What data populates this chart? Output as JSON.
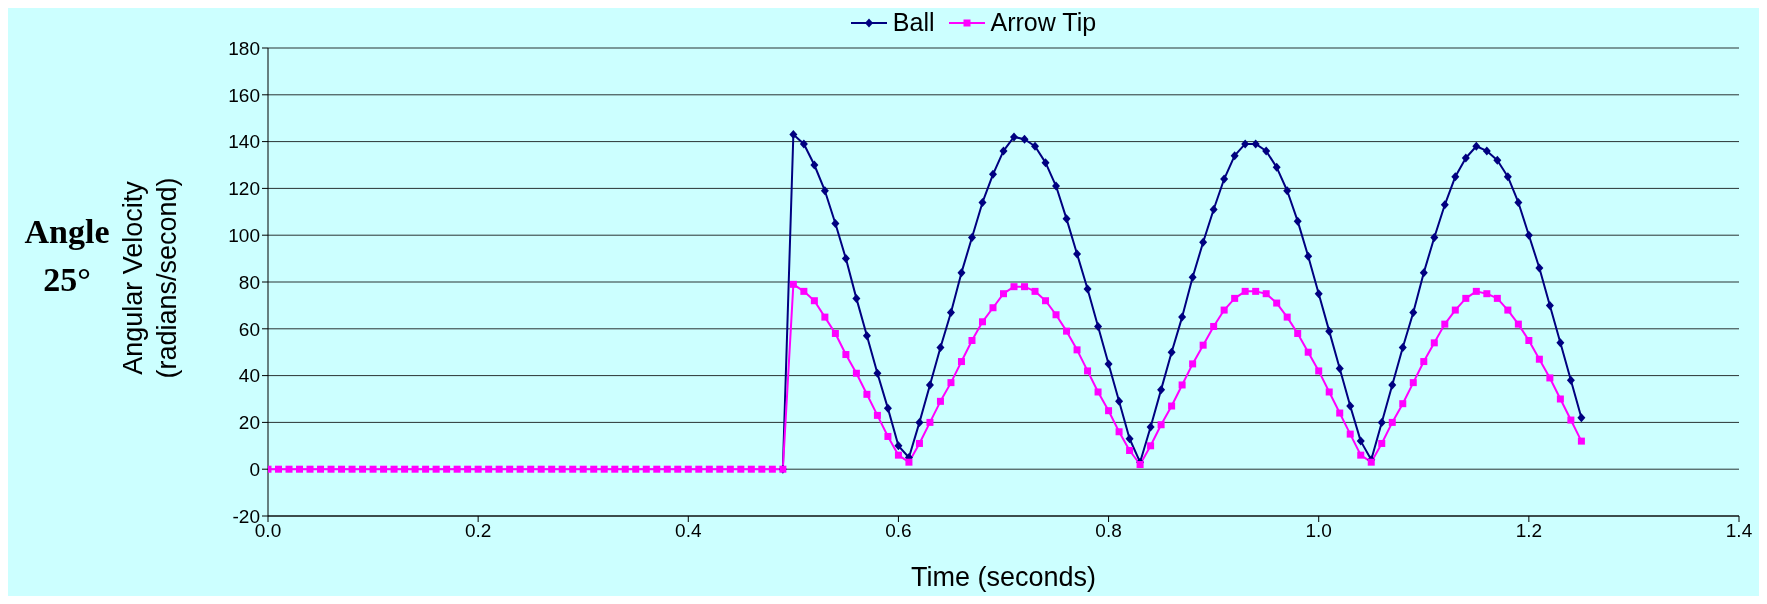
{
  "chart_data": {
    "type": "line",
    "xlabel": "Time (seconds)",
    "ylabel": "Angular Velocity (radians/second)",
    "annotations": [
      "Angle 25°"
    ],
    "x": [
      0,
      0.01,
      0.02,
      0.03,
      0.04,
      0.05,
      0.06,
      0.07,
      0.08,
      0.09,
      0.1,
      0.11,
      0.12,
      0.13,
      0.14,
      0.15,
      0.16,
      0.17,
      0.18,
      0.19,
      0.2,
      0.21,
      0.22,
      0.23,
      0.24,
      0.25,
      0.26,
      0.27,
      0.28,
      0.29,
      0.3,
      0.31,
      0.32,
      0.33,
      0.34,
      0.35,
      0.36,
      0.37,
      0.38,
      0.39,
      0.4,
      0.41,
      0.42,
      0.43,
      0.44,
      0.45,
      0.46,
      0.47,
      0.48,
      0.49,
      0.5,
      0.51,
      0.52,
      0.53,
      0.54,
      0.55,
      0.56,
      0.57,
      0.58,
      0.59,
      0.6,
      0.61,
      0.62,
      0.63,
      0.64,
      0.65,
      0.66,
      0.67,
      0.68,
      0.69,
      0.7,
      0.71,
      0.72,
      0.73,
      0.74,
      0.75,
      0.76,
      0.77,
      0.78,
      0.79,
      0.8,
      0.81,
      0.82,
      0.83,
      0.84,
      0.85,
      0.86,
      0.87,
      0.88,
      0.89,
      0.9,
      0.91,
      0.92,
      0.93,
      0.94,
      0.95,
      0.96,
      0.97,
      0.98,
      0.99,
      1,
      1.01,
      1.02,
      1.03,
      1.04,
      1.05,
      1.06,
      1.07,
      1.08,
      1.09,
      1.1,
      1.11,
      1.12,
      1.13,
      1.14,
      1.15,
      1.16,
      1.17,
      1.18,
      1.19,
      1.2,
      1.21,
      1.22,
      1.23,
      1.24,
      1.25
    ],
    "series": [
      {
        "name": "Ball",
        "color": "#000080",
        "marker": "diamond",
        "values": [
          null,
          null,
          null,
          null,
          null,
          null,
          null,
          null,
          null,
          null,
          null,
          null,
          null,
          null,
          null,
          null,
          null,
          null,
          null,
          null,
          null,
          null,
          null,
          null,
          null,
          null,
          null,
          null,
          null,
          null,
          null,
          null,
          null,
          null,
          null,
          null,
          null,
          null,
          null,
          null,
          null,
          null,
          null,
          null,
          null,
          null,
          null,
          null,
          null,
          0,
          143,
          139,
          130,
          119,
          105,
          90,
          73,
          57,
          41,
          26,
          10,
          5,
          20,
          36,
          52,
          67,
          84,
          99,
          114,
          126,
          136,
          142,
          141,
          138,
          131,
          121,
          107,
          92,
          77,
          61,
          45,
          29,
          13,
          3,
          18,
          34,
          50,
          65,
          82,
          97,
          111,
          124,
          134,
          139,
          139,
          136,
          129,
          119,
          106,
          91,
          75,
          59,
          43,
          27,
          12,
          4,
          20,
          36,
          52,
          67,
          84,
          99,
          113,
          125,
          133,
          138,
          136,
          132,
          125,
          114,
          100,
          86,
          70,
          54,
          38,
          22
        ]
      },
      {
        "name": "Arrow Tip",
        "color": "#ff00ff",
        "marker": "square",
        "values": [
          0,
          0,
          0,
          0,
          0,
          0,
          0,
          0,
          0,
          0,
          0,
          0,
          0,
          0,
          0,
          0,
          0,
          0,
          0,
          0,
          0,
          0,
          0,
          0,
          0,
          0,
          0,
          0,
          0,
          0,
          0,
          0,
          0,
          0,
          0,
          0,
          0,
          0,
          0,
          0,
          0,
          0,
          0,
          0,
          0,
          0,
          0,
          0,
          0,
          0,
          79,
          76,
          72,
          65,
          58,
          49,
          41,
          32,
          23,
          14,
          6,
          3,
          11,
          20,
          29,
          37,
          46,
          55,
          63,
          69,
          75,
          78,
          78,
          76,
          72,
          66,
          59,
          51,
          42,
          33,
          25,
          16,
          8,
          2,
          10,
          19,
          27,
          36,
          45,
          53,
          61,
          68,
          73,
          76,
          76,
          75,
          71,
          65,
          58,
          50,
          42,
          33,
          24,
          15,
          6,
          3,
          11,
          20,
          28,
          37,
          46,
          54,
          62,
          68,
          73,
          76,
          75,
          73,
          68,
          62,
          55,
          47,
          39,
          30,
          21,
          12
        ]
      }
    ],
    "xlim": [
      0,
      1.4
    ],
    "xticks": [
      {
        "value": 0,
        "label": "0.0"
      },
      {
        "value": 0.2,
        "label": "0.2"
      },
      {
        "value": 0.4,
        "label": "0.4"
      },
      {
        "value": 0.6,
        "label": "0.6"
      },
      {
        "value": 0.8,
        "label": "0.8"
      },
      {
        "value": 1,
        "label": "1.0"
      },
      {
        "value": 1.2,
        "label": "1.2"
      },
      {
        "value": 1.4,
        "label": "1.4"
      }
    ],
    "ylim": [
      -20,
      180
    ],
    "yticks": [
      -20,
      0,
      20,
      40,
      60,
      80,
      100,
      120,
      140,
      160,
      180
    ],
    "grid": "y",
    "legend": "top",
    "line_style": "solid"
  }
}
